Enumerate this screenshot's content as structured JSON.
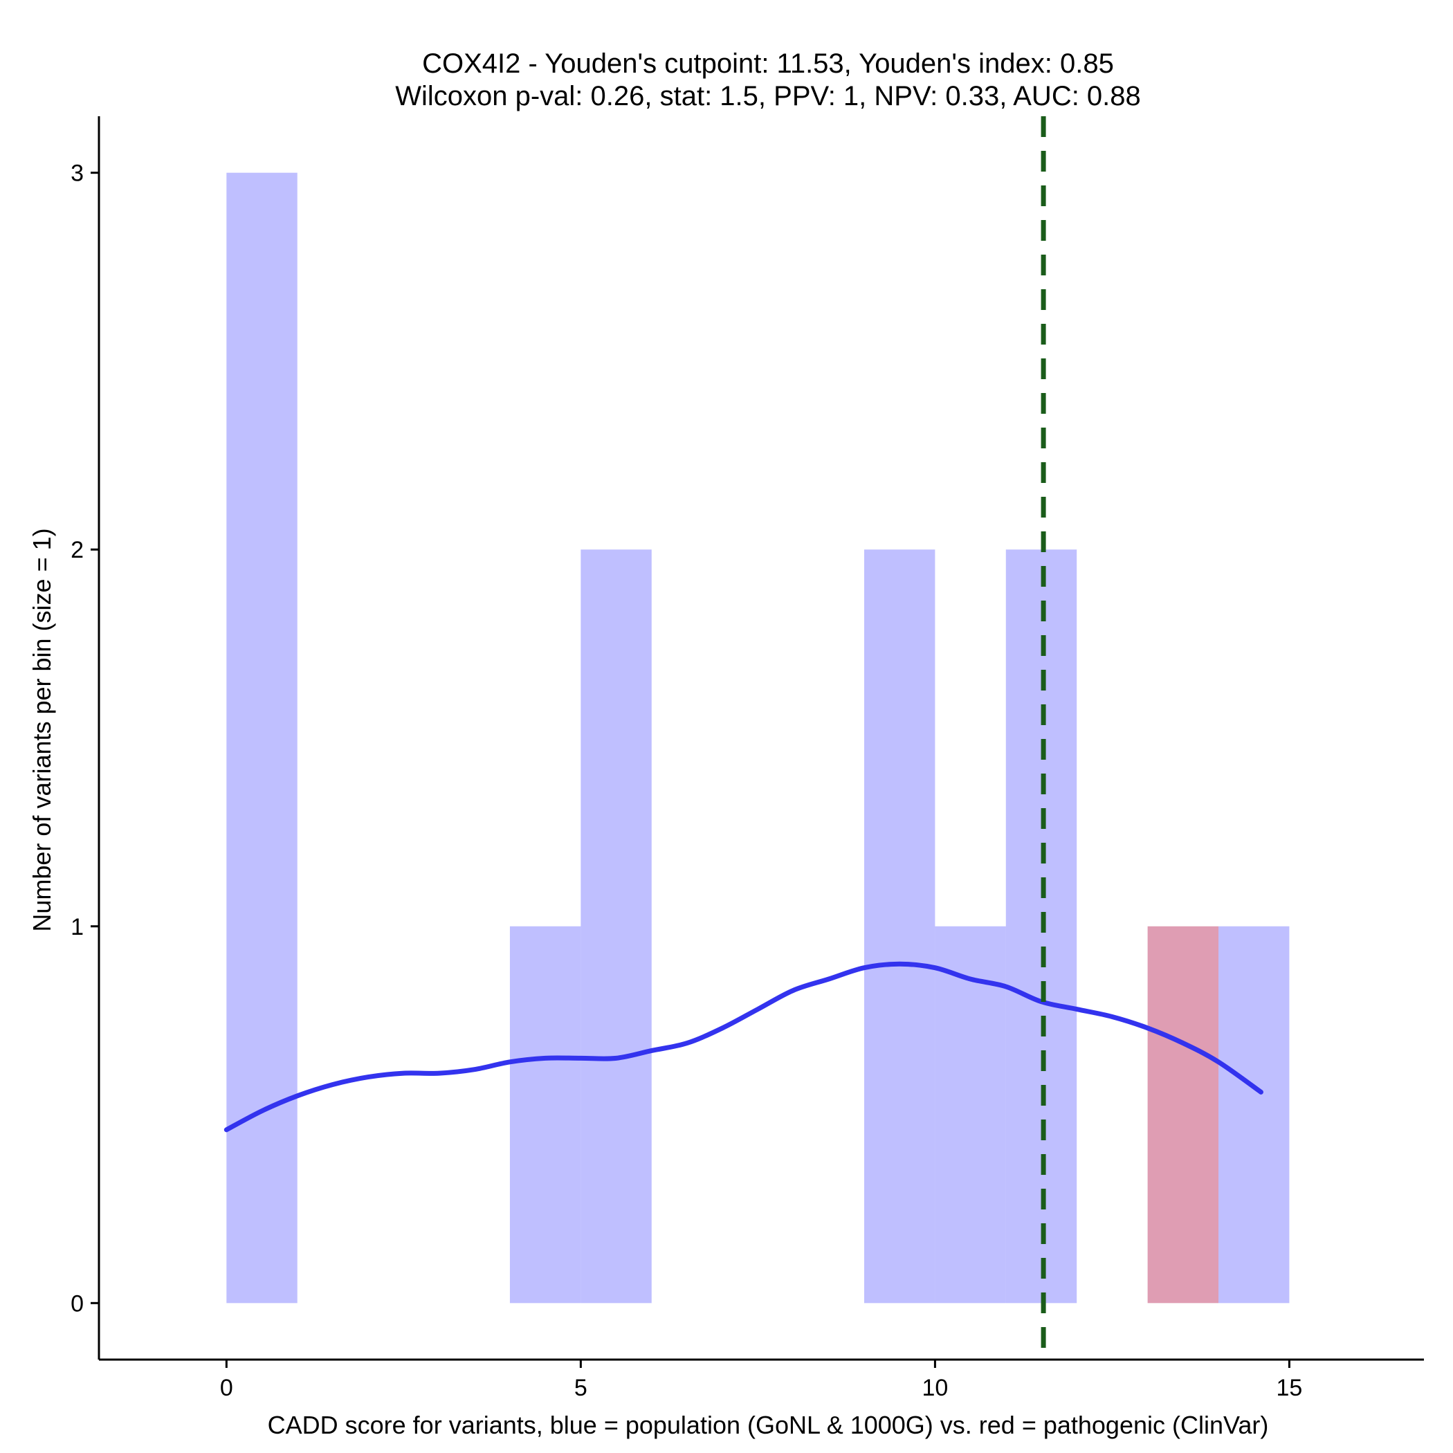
{
  "chart_data": {
    "type": "bar",
    "title_line1": "COX4I2 - Youden's cutpoint: 11.53, Youden's index: 0.85",
    "title_line2": "Wilcoxon p-val: 0.26, stat: 1.5, PPV: 1, NPV: 0.33, AUC: 0.88",
    "xlabel": "CADD score for variants, blue = population (GoNL & 1000G) vs. red = pathogenic (ClinVar)",
    "ylabel": "Number of variants per bin (size = 1)",
    "xlim": [
      -1.8,
      16.9
    ],
    "ylim": [
      -0.15,
      3.15
    ],
    "x_ticks": [
      0,
      5,
      10,
      15
    ],
    "y_ticks": [
      0,
      1,
      2,
      3
    ],
    "bin_width": 1,
    "series": [
      {
        "name": "population (GoNL & 1000G)",
        "color": "#8080ff",
        "opacity": 0.5,
        "bins": [
          {
            "x0": 0,
            "count": 3
          },
          {
            "x0": 4,
            "count": 1
          },
          {
            "x0": 5,
            "count": 2
          },
          {
            "x0": 9,
            "count": 2
          },
          {
            "x0": 10,
            "count": 1
          },
          {
            "x0": 11,
            "count": 2
          },
          {
            "x0": 14,
            "count": 1
          }
        ]
      },
      {
        "name": "pathogenic (ClinVar)",
        "color": "#d98ca6",
        "opacity": 0.85,
        "bins": [
          {
            "x0": 13,
            "count": 1
          }
        ]
      }
    ],
    "density_curve": {
      "color": "#3333ee",
      "x": [
        0,
        0.5,
        1,
        1.5,
        2,
        2.5,
        3,
        3.5,
        4,
        4.5,
        5,
        5.5,
        6,
        6.5,
        7,
        7.5,
        8,
        8.5,
        9,
        9.5,
        10,
        10.5,
        11,
        11.5,
        12,
        12.5,
        13,
        13.5,
        14,
        14.6
      ],
      "y": [
        0.46,
        0.51,
        0.55,
        0.58,
        0.6,
        0.61,
        0.61,
        0.62,
        0.64,
        0.65,
        0.65,
        0.65,
        0.67,
        0.69,
        0.73,
        0.78,
        0.83,
        0.86,
        0.89,
        0.9,
        0.89,
        0.86,
        0.84,
        0.8,
        0.78,
        0.76,
        0.73,
        0.69,
        0.64,
        0.56
      ]
    },
    "cutpoint": {
      "x": 11.53,
      "color": "#1a5c1a",
      "style": "dashed"
    }
  }
}
